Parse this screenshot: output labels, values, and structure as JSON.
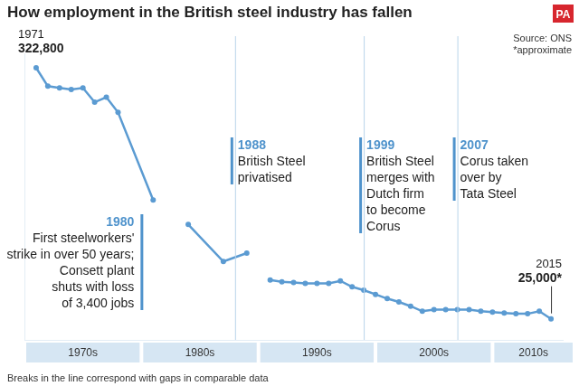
{
  "chart_data": {
    "type": "line",
    "title": "How employment in the British steel industry has fallen",
    "logo": "PA",
    "source": "Source: ONS",
    "note": "*approximate",
    "footnote": "Breaks in the line correspond with gaps in comparable data",
    "x": [
      1971,
      1972,
      1973,
      1974,
      1975,
      1976,
      1977,
      1978,
      1981,
      1982,
      1984,
      1987,
      1989,
      1990,
      1991,
      1992,
      1993,
      1994,
      1995,
      1996,
      1997,
      1998,
      1999,
      2000,
      2001,
      2002,
      2003,
      2004,
      2005,
      2006,
      2007,
      2008,
      2009,
      2010,
      2011,
      2012,
      2013,
      2014,
      2015
    ],
    "values": [
      322800,
      301000,
      299000,
      297000,
      299000,
      282000,
      288000,
      270000,
      166000,
      null,
      137000,
      93000,
      103000,
      null,
      71000,
      69000,
      68000,
      67000,
      67000,
      67000,
      70000,
      63000,
      59000,
      54000,
      49000,
      45000,
      40000,
      34000,
      36000,
      36000,
      36000,
      36000,
      34000,
      33000,
      32000,
      31000,
      31000,
      34000,
      25000
    ],
    "color": "#5b9bd2",
    "marker": "circle",
    "xlim": [
      1970,
      2016
    ],
    "ylim": [
      0,
      340000
    ],
    "grid": false,
    "tick_labels": false,
    "decades": [
      {
        "label": "1970s",
        "start": 1970,
        "end": 1980
      },
      {
        "label": "1980s",
        "start": 1980,
        "end": 1990
      },
      {
        "label": "1990s",
        "start": 1990,
        "end": 2000
      },
      {
        "label": "2000s",
        "start": 2000,
        "end": 2010
      },
      {
        "label": "2010s",
        "start": 2010,
        "end": 2020
      }
    ],
    "point_labels": [
      {
        "year": 1971,
        "value": 322800,
        "label": "322,800"
      },
      {
        "year": 2015,
        "value": 25000,
        "label": "25,000*"
      }
    ],
    "annotations": [
      {
        "year": 1980,
        "lines": [
          "First steelworkers'",
          "strike in over 50 years;",
          "Consett plant",
          "shuts with loss",
          "of 3,400 jobs"
        ]
      },
      {
        "year": 1988,
        "lines": [
          "British Steel",
          "privatised"
        ]
      },
      {
        "year": 1999,
        "lines": [
          "British Steel",
          "merges with",
          "Dutch firm",
          "to become",
          "Corus"
        ]
      },
      {
        "year": 2007,
        "lines": [
          "Corus taken",
          "over by",
          "Tata Steel"
        ]
      }
    ]
  }
}
